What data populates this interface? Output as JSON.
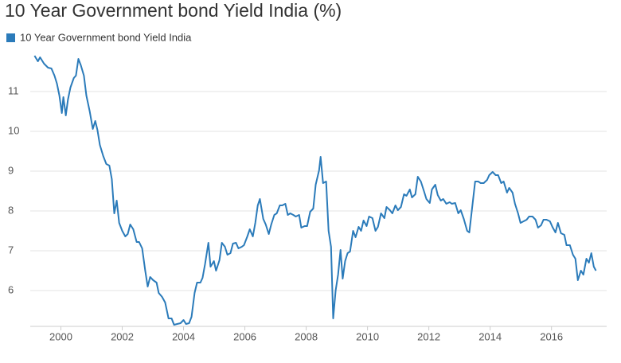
{
  "chart_data": {
    "type": "line",
    "title": "10 Year Government bond Yield India (%)",
    "xlim": [
      1999,
      2017.8
    ],
    "xticks": [
      2000,
      2002,
      2004,
      2006,
      2008,
      2010,
      2012,
      2014,
      2016
    ],
    "ylim": [
      5.1,
      12.1
    ],
    "yticks": [
      6,
      7,
      8,
      9,
      10,
      11
    ],
    "grid": true,
    "legend": "top-left",
    "x": [
      1999.14,
      1999.25,
      1999.32,
      1999.45,
      1999.58,
      1999.69,
      1999.79,
      1999.87,
      1999.95,
      2000.03,
      2000.08,
      2000.16,
      2000.23,
      2000.31,
      2000.42,
      2000.49,
      2000.57,
      2000.65,
      2000.75,
      2000.83,
      2000.94,
      2001.04,
      2001.12,
      2001.19,
      2001.27,
      2001.38,
      2001.48,
      2001.58,
      2001.66,
      2001.74,
      2001.82,
      2001.9,
      2002.0,
      2002.1,
      2002.18,
      2002.26,
      2002.36,
      2002.47,
      2002.55,
      2002.65,
      2002.75,
      2002.83,
      2002.91,
      2003.01,
      2003.12,
      2003.19,
      2003.3,
      2003.4,
      2003.51,
      2003.61,
      2003.69,
      2003.79,
      2003.9,
      2004.0,
      2004.08,
      2004.18,
      2004.26,
      2004.36,
      2004.44,
      2004.55,
      2004.62,
      2004.7,
      2004.81,
      2004.88,
      2004.99,
      2005.06,
      2005.17,
      2005.25,
      2005.35,
      2005.43,
      2005.53,
      2005.61,
      2005.71,
      2005.79,
      2005.9,
      2005.97,
      2006.08,
      2006.16,
      2006.26,
      2006.34,
      2006.42,
      2006.49,
      2006.6,
      2006.68,
      2006.78,
      2006.86,
      2006.96,
      2007.04,
      2007.14,
      2007.22,
      2007.32,
      2007.4,
      2007.48,
      2007.58,
      2007.66,
      2007.77,
      2007.84,
      2007.95,
      2008.03,
      2008.13,
      2008.23,
      2008.31,
      2008.42,
      2008.47,
      2008.55,
      2008.65,
      2008.73,
      2008.81,
      2008.88,
      2008.96,
      2009.04,
      2009.12,
      2009.19,
      2009.27,
      2009.35,
      2009.43,
      2009.53,
      2009.61,
      2009.71,
      2009.79,
      2009.87,
      2009.97,
      2010.05,
      2010.16,
      2010.26,
      2010.34,
      2010.44,
      2010.55,
      2010.62,
      2010.73,
      2010.81,
      2010.91,
      2010.99,
      2011.09,
      2011.19,
      2011.27,
      2011.38,
      2011.45,
      2011.56,
      2011.64,
      2011.74,
      2011.84,
      2011.92,
      2012.03,
      2012.1,
      2012.21,
      2012.29,
      2012.39,
      2012.47,
      2012.57,
      2012.68,
      2012.75,
      2012.86,
      2012.96,
      2013.04,
      2013.14,
      2013.25,
      2013.32,
      2013.43,
      2013.51,
      2013.61,
      2013.69,
      2013.79,
      2013.9,
      2013.97,
      2014.08,
      2014.18,
      2014.26,
      2014.36,
      2014.44,
      2014.55,
      2014.62,
      2014.73,
      2014.81,
      2014.91,
      2014.99,
      2015.09,
      2015.19,
      2015.27,
      2015.38,
      2015.48,
      2015.56,
      2015.66,
      2015.74,
      2015.84,
      2015.95,
      2016.03,
      2016.13,
      2016.21,
      2016.31,
      2016.42,
      2016.49,
      2016.6,
      2016.7,
      2016.78,
      2016.86,
      2016.96,
      2017.04,
      2017.14,
      2017.22,
      2017.3,
      2017.38,
      2017.45
    ],
    "series": [
      {
        "name": "10 Year Government bond Yield India",
        "color": "#2b7bba",
        "values": [
          11.9,
          11.76,
          11.86,
          11.7,
          11.6,
          11.58,
          11.4,
          11.2,
          10.9,
          10.46,
          10.86,
          10.4,
          10.8,
          11.1,
          11.34,
          11.4,
          11.82,
          11.66,
          11.4,
          10.9,
          10.5,
          10.06,
          10.26,
          10.04,
          9.66,
          9.38,
          9.18,
          9.14,
          8.8,
          7.94,
          8.26,
          7.7,
          7.5,
          7.36,
          7.42,
          7.66,
          7.54,
          7.22,
          7.22,
          7.06,
          6.5,
          6.1,
          6.34,
          6.26,
          6.2,
          5.94,
          5.84,
          5.7,
          5.3,
          5.3,
          5.14,
          5.16,
          5.18,
          5.26,
          5.16,
          5.18,
          5.34,
          5.94,
          6.2,
          6.2,
          6.32,
          6.66,
          7.2,
          6.6,
          6.74,
          6.5,
          6.76,
          7.2,
          7.1,
          6.9,
          6.94,
          7.18,
          7.2,
          7.06,
          7.1,
          7.14,
          7.36,
          7.54,
          7.36,
          7.7,
          8.14,
          8.3,
          7.8,
          7.66,
          7.42,
          7.66,
          7.9,
          7.94,
          8.14,
          8.14,
          8.18,
          7.9,
          7.94,
          7.9,
          7.86,
          7.9,
          7.58,
          7.62,
          7.62,
          7.98,
          8.06,
          8.66,
          9.02,
          9.36,
          8.7,
          8.74,
          7.5,
          7.1,
          5.3,
          6.0,
          6.4,
          7.02,
          6.3,
          6.74,
          6.94,
          6.98,
          7.5,
          7.34,
          7.6,
          7.5,
          7.76,
          7.62,
          7.86,
          7.82,
          7.5,
          7.6,
          7.94,
          7.82,
          8.1,
          8.02,
          7.94,
          8.14,
          8.02,
          8.1,
          8.42,
          8.38,
          8.54,
          8.34,
          8.42,
          8.86,
          8.74,
          8.5,
          8.3,
          8.2,
          8.54,
          8.66,
          8.4,
          8.26,
          8.3,
          8.18,
          8.22,
          8.18,
          8.2,
          7.94,
          8.02,
          7.8,
          7.5,
          7.46,
          8.2,
          8.74,
          8.74,
          8.7,
          8.7,
          8.78,
          8.9,
          8.98,
          8.9,
          8.9,
          8.7,
          8.74,
          8.46,
          8.58,
          8.46,
          8.18,
          7.94,
          7.7,
          7.74,
          7.78,
          7.86,
          7.86,
          7.78,
          7.58,
          7.64,
          7.78,
          7.78,
          7.74,
          7.6,
          7.46,
          7.7,
          7.44,
          7.4,
          7.14,
          7.14,
          6.9,
          6.8,
          6.26,
          6.5,
          6.4,
          6.8,
          6.7,
          6.94,
          6.6,
          6.5
        ]
      }
    ]
  }
}
